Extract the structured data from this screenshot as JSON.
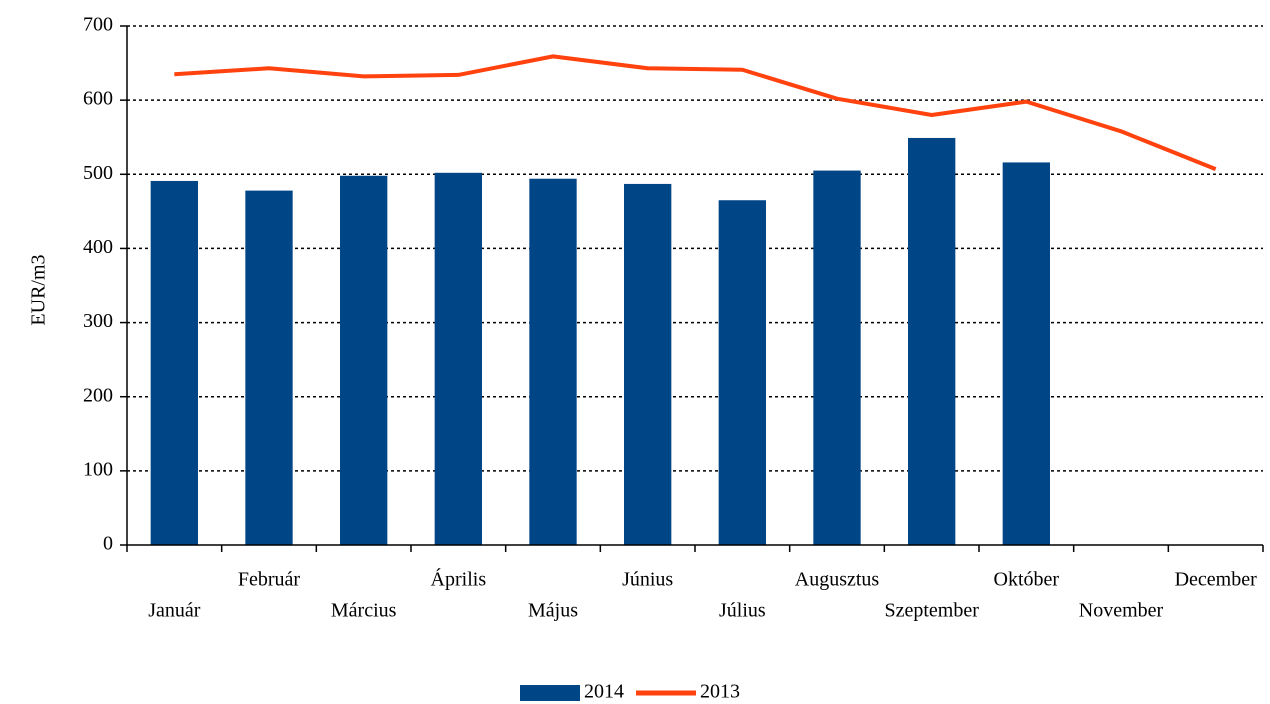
{
  "chart_data": {
    "type": "bar",
    "y_label": "EUR/m3",
    "categories": [
      "Január",
      "Február",
      "Március",
      "Április",
      "Május",
      "Június",
      "Július",
      "Augusztus",
      "Szeptember",
      "Október",
      "November",
      "December"
    ],
    "series": [
      {
        "name": "2014",
        "type": "bar",
        "color": "#004586",
        "values": [
          491,
          478,
          498,
          502,
          494,
          487,
          465,
          505,
          549,
          516,
          null,
          null
        ]
      },
      {
        "name": "2013",
        "type": "line",
        "color": "#ff420e",
        "values": [
          635,
          643,
          632,
          634,
          659,
          643,
          641,
          602,
          580,
          598,
          558,
          507
        ]
      }
    ],
    "ylim": [
      0,
      700
    ],
    "yticks": [
      0,
      100,
      200,
      300,
      400,
      500,
      600,
      700
    ],
    "grid": true,
    "legend": "bottom"
  }
}
